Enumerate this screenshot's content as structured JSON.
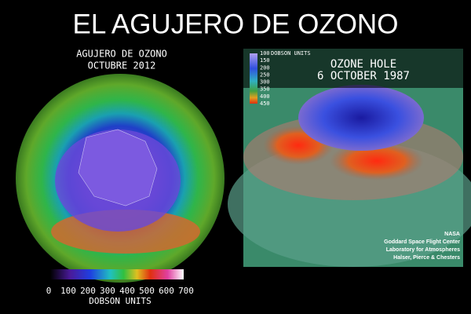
{
  "header": {
    "title": "EL AGUJERO DE OZONO"
  },
  "left_panel": {
    "title": "AGUJERO DE OZONO",
    "date": "OCTUBRE 2012",
    "colorbar": {
      "ticks": [
        0,
        100,
        200,
        300,
        400,
        500,
        600,
        700
      ],
      "unit": "DOBSON UNITS"
    }
  },
  "right_panel": {
    "title": "OZONE HOLE",
    "date": "6 OCTOBER 1987",
    "legend": {
      "ticks": [
        100,
        150,
        200,
        250,
        300,
        350,
        400,
        450
      ],
      "unit": "DOBSON UNITS"
    },
    "credits": [
      "NASA",
      "Goddard Space Flight Center",
      "Laboratory for Atmospheres",
      "Halser, Pierce & Chesters"
    ]
  }
}
